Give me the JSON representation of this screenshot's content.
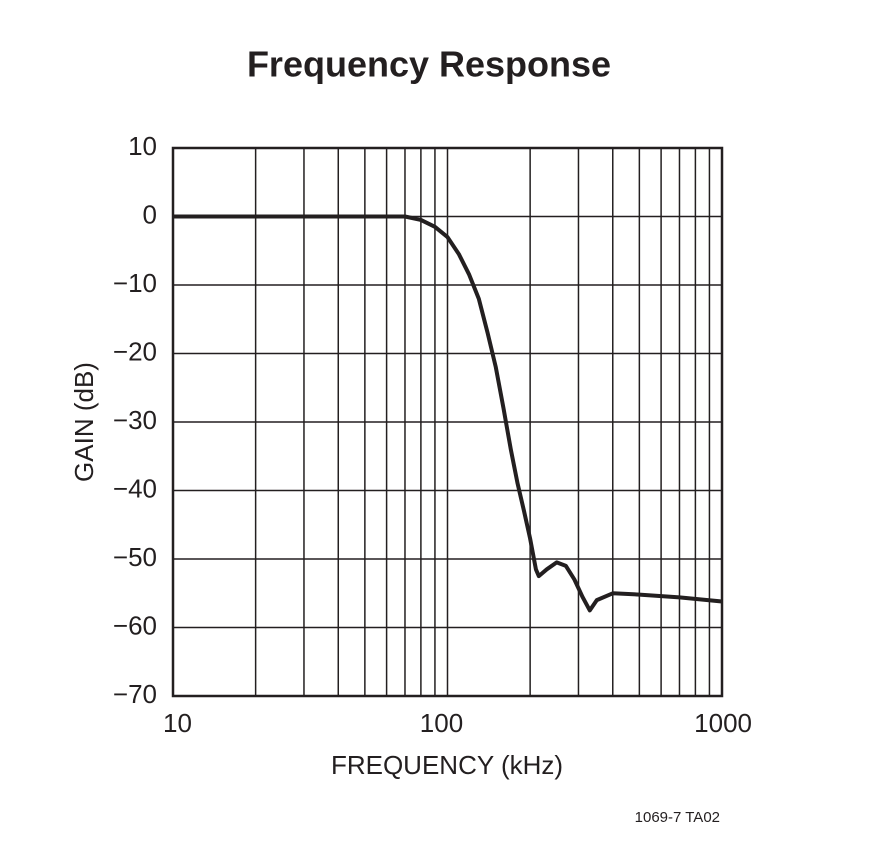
{
  "chart_data": {
    "type": "line",
    "title": "Frequency Response",
    "x_label": "FREQUENCY (kHz)",
    "y_label": "GAIN (dB)",
    "footnote": "1069-7 TA02",
    "x_log": true,
    "grid": true,
    "xlim": [
      10,
      1000
    ],
    "xticks": [
      10,
      100,
      1000
    ],
    "xminorticks": [
      20,
      30,
      40,
      50,
      60,
      70,
      80,
      90,
      200,
      300,
      400,
      500,
      600,
      700,
      800,
      900
    ],
    "ylim": [
      -70,
      10
    ],
    "yticks": [
      {
        "value": -70,
        "label": "−70"
      },
      {
        "value": -60,
        "label": "−60"
      },
      {
        "value": -50,
        "label": "−50"
      },
      {
        "value": -40,
        "label": "−40"
      },
      {
        "value": -30,
        "label": "−30"
      },
      {
        "value": -20,
        "label": "−20"
      },
      {
        "value": -10,
        "label": "−10"
      },
      0,
      10
    ],
    "series": [
      {
        "color": "#231f20",
        "x": [
          10,
          20,
          50,
          70,
          80,
          90,
          100,
          110,
          120,
          130,
          140,
          150,
          160,
          170,
          180,
          190,
          200,
          210,
          215,
          230,
          250,
          270,
          290,
          310,
          330,
          350,
          400,
          500,
          700,
          1000
        ],
        "values": [
          0,
          0,
          0,
          0,
          -0.5,
          -1.5,
          -3,
          -5.5,
          -8.5,
          -12,
          -17,
          -22,
          -28,
          -34,
          -39,
          -43,
          -47,
          -51.5,
          -52.5,
          -51.5,
          -50.5,
          -51,
          -53,
          -55.5,
          -57.5,
          -56,
          -55,
          -55.2,
          -55.6,
          -56.2
        ]
      }
    ]
  }
}
